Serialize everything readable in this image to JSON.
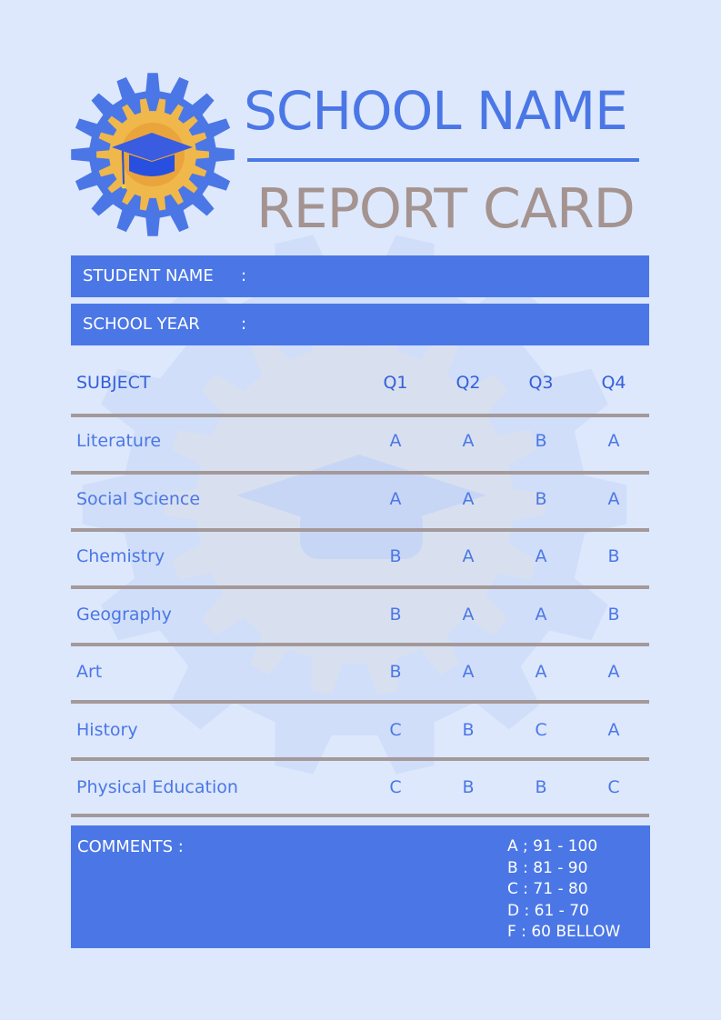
{
  "header": {
    "school_name": "SCHOOL NAME",
    "title": "REPORT CARD",
    "logo_icon": "gear-graduation-cap-icon"
  },
  "info": {
    "student_name_label": "STUDENT NAME",
    "school_year_label": "SCHOOL YEAR",
    "separator": ":"
  },
  "table": {
    "headers": [
      "SUBJECT",
      "Q1",
      "Q2",
      "Q3",
      "Q4"
    ],
    "rows": [
      {
        "subject": "Literature",
        "grades": [
          "A",
          "A",
          "B",
          "A"
        ]
      },
      {
        "subject": "Social Science",
        "grades": [
          "A",
          "A",
          "B",
          "A"
        ]
      },
      {
        "subject": "Chemistry",
        "grades": [
          "B",
          "A",
          "A",
          "B"
        ]
      },
      {
        "subject": "Geography",
        "grades": [
          "B",
          "A",
          "A",
          "B"
        ]
      },
      {
        "subject": "Art",
        "grades": [
          "B",
          "A",
          "A",
          "A"
        ]
      },
      {
        "subject": "History",
        "grades": [
          "C",
          "B",
          "C",
          "A"
        ]
      },
      {
        "subject": "Physical Education",
        "grades": [
          "C",
          "B",
          "B",
          "C"
        ]
      }
    ]
  },
  "comments": {
    "label": "COMMENTS :",
    "scale": [
      "A ; 91 - 100",
      "B : 81 - 90",
      "C : 71 - 80",
      "D : 61 - 70",
      "F : 60 BELLOW"
    ]
  },
  "colors": {
    "primary": "#4b77e6",
    "title_gray": "#a4938f",
    "background": "#dde8fd",
    "gold": "#f0b84a"
  }
}
